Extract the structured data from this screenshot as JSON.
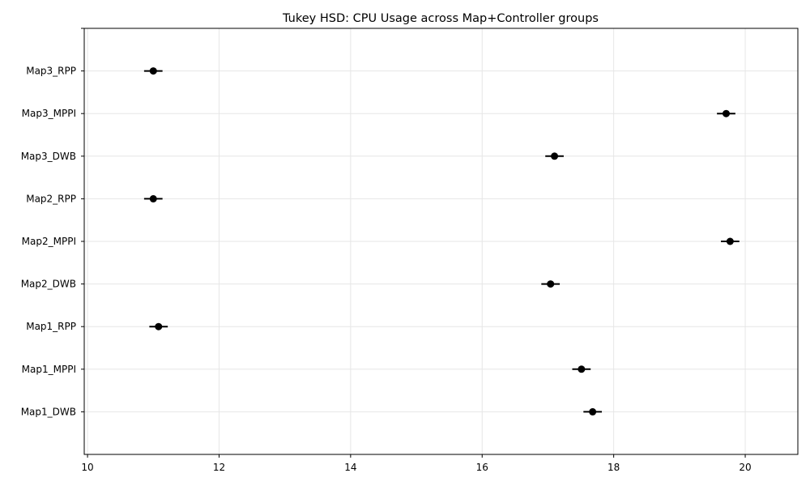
{
  "chart_data": {
    "type": "scatter",
    "title": "Tukey HSD: CPU Usage across Map+Controller groups",
    "xlabel": "",
    "ylabel": "",
    "xlim": [
      9.95,
      20.8
    ],
    "xticks": [
      10,
      12,
      14,
      16,
      18,
      20
    ],
    "grid": true,
    "groups": [
      {
        "label": "Map1_DWB",
        "mean": 17.68,
        "lower": 17.54,
        "upper": 17.82
      },
      {
        "label": "Map1_MPPI",
        "mean": 17.51,
        "lower": 17.37,
        "upper": 17.65
      },
      {
        "label": "Map1_RPP",
        "mean": 11.08,
        "lower": 10.94,
        "upper": 11.22
      },
      {
        "label": "Map2_DWB",
        "mean": 17.04,
        "lower": 16.9,
        "upper": 17.18
      },
      {
        "label": "Map2_MPPI",
        "mean": 19.77,
        "lower": 19.63,
        "upper": 19.91
      },
      {
        "label": "Map2_RPP",
        "mean": 11.0,
        "lower": 10.86,
        "upper": 11.14
      },
      {
        "label": "Map3_DWB",
        "mean": 17.1,
        "lower": 16.96,
        "upper": 17.24
      },
      {
        "label": "Map3_MPPI",
        "mean": 19.71,
        "lower": 19.57,
        "upper": 19.85
      },
      {
        "label": "Map3_RPP",
        "mean": 11.0,
        "lower": 10.86,
        "upper": 11.14
      }
    ]
  }
}
